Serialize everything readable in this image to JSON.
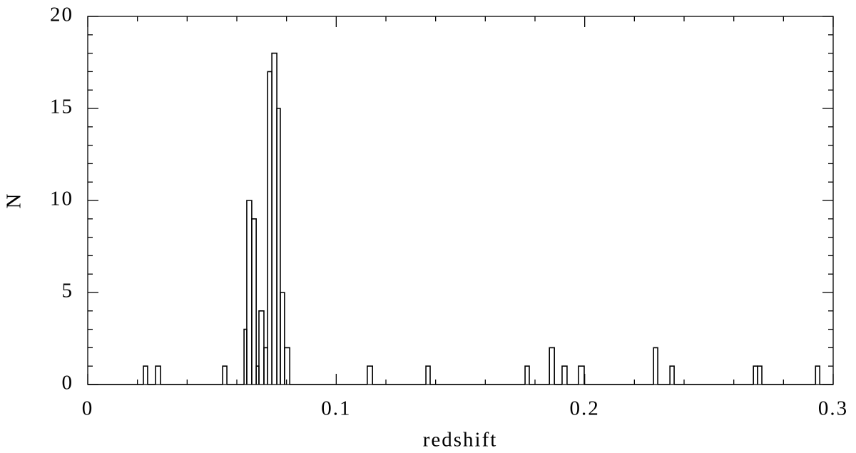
{
  "chart_data": {
    "type": "histogram",
    "x_label": "redshift",
    "y_label": "N",
    "bins": [
      0,
      0.0224,
      0.0241,
      0.0273,
      0.0293,
      0.0543,
      0.056,
      0.0629,
      0.064,
      0.066,
      0.0678,
      0.0689,
      0.0709,
      0.0724,
      0.0741,
      0.0761,
      0.0775,
      0.0792,
      0.0813,
      0.1125,
      0.1146,
      0.1361,
      0.1378,
      0.176,
      0.1777,
      0.1858,
      0.1878,
      0.1909,
      0.1929,
      0.1975,
      0.1998,
      0.2277,
      0.2294,
      0.2343,
      0.236,
      0.2679,
      0.2696,
      0.2713,
      0.2929,
      0.2946,
      0.3
    ],
    "values": [
      0,
      1,
      0,
      1,
      0,
      1,
      0,
      3,
      10,
      9,
      1,
      4,
      2,
      17,
      18,
      15,
      5,
      2,
      0,
      1,
      0,
      1,
      0,
      1,
      0,
      2,
      0,
      1,
      0,
      1,
      0,
      2,
      0,
      1,
      0,
      1,
      1,
      0,
      1,
      0
    ],
    "color": "#000000",
    "xlim": [
      0,
      0.3
    ],
    "xticks": [
      0,
      0.1,
      0.2,
      0.3
    ],
    "ylim": [
      0,
      20
    ],
    "yticks": [
      0,
      5,
      10,
      15,
      20
    ],
    "minor_ticks": true
  }
}
